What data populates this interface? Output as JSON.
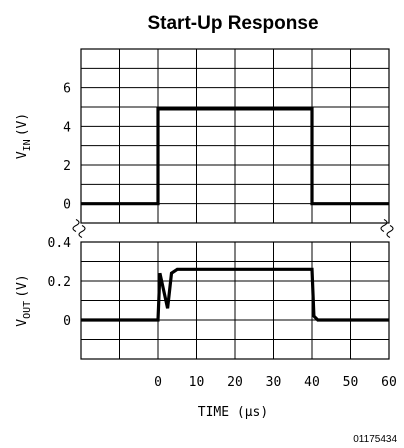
{
  "chart_data": {
    "type": "line",
    "title": "Start-Up Response",
    "xlabel": "TIME (μs)",
    "xlim": [
      -20,
      60
    ],
    "x_ticks": [
      0,
      10,
      20,
      30,
      40,
      50,
      60
    ],
    "figure_id": "01175434",
    "panels": [
      {
        "ylabel_main": "V",
        "ylabel_sub": "IN",
        "ylabel_unit": "(V)",
        "ylim": [
          -1,
          8
        ],
        "y_ticks": [
          0,
          2,
          4,
          6
        ],
        "series": [
          {
            "x": [
              -20,
              0,
              0,
              40,
              40,
              60
            ],
            "y": [
              0,
              0,
              4.9,
              4.9,
              0,
              0
            ]
          }
        ]
      },
      {
        "ylabel_main": "V",
        "ylabel_sub": "OUT",
        "ylabel_unit": "(V)",
        "ylim": [
          -0.2,
          0.4
        ],
        "y_ticks": [
          0,
          0.2,
          0.4
        ],
        "series": [
          {
            "x": [
              -20,
              0,
              0.5,
              2.5,
              3.5,
              5,
              40,
              40.5,
              41.5,
              60
            ],
            "y": [
              0,
              0,
              0.24,
              0.06,
              0.24,
              0.26,
              0.26,
              0.02,
              0,
              0
            ]
          }
        ]
      }
    ]
  }
}
